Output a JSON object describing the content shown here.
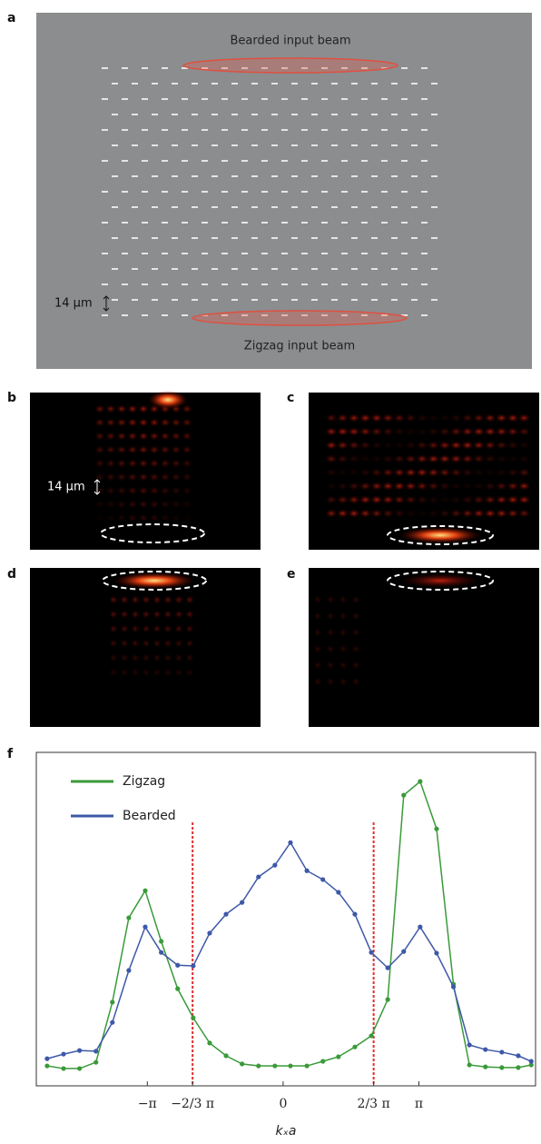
{
  "figure": {
    "panel_labels": [
      "a",
      "b",
      "c",
      "d",
      "e",
      "f"
    ],
    "bearded_label": "Bearded input beam",
    "zigzag_label": "Zigzag input beam",
    "scale_a": "14 μm",
    "scale_b": "14 μm"
  },
  "chart_data": {
    "type": "line",
    "xlabel": "kₓa",
    "legend": "upper left",
    "grid": false,
    "x": [
      -5.46,
      -5.08,
      -4.71,
      -4.33,
      -3.95,
      -3.57,
      -3.19,
      -2.82,
      -2.44,
      -2.08,
      -1.7,
      -1.32,
      -0.95,
      -0.57,
      -0.19,
      0.17,
      0.55,
      0.92,
      1.28,
      1.66,
      2.04,
      2.42,
      2.79,
      3.17,
      3.55,
      3.94,
      4.31,
      4.68,
      5.06,
      5.44,
      5.74
    ],
    "series": [
      {
        "name": "Zigzag",
        "color": "#3a9a3a",
        "values": [
          6.1,
          5.3,
          5.3,
          7.2,
          25.6,
          51.4,
          59.7,
          44.2,
          29.7,
          20.8,
          13.1,
          9.2,
          6.7,
          6.1,
          6.1,
          6.1,
          6.1,
          7.5,
          8.9,
          11.9,
          15.3,
          26.4,
          88.9,
          93.1,
          78.6,
          31.1,
          6.4,
          5.8,
          5.6,
          5.6,
          6.4
        ]
      },
      {
        "name": "Bearded",
        "color": "#3e58a8",
        "values": [
          8.3,
          9.7,
          10.8,
          10.6,
          19.4,
          35.3,
          48.6,
          40.8,
          36.9,
          36.7,
          46.7,
          52.5,
          56.1,
          63.9,
          67.5,
          74.4,
          65.8,
          63.1,
          59.2,
          52.5,
          40.8,
          36.1,
          41.1,
          48.6,
          40.6,
          30.3,
          12.5,
          11.1,
          10.3,
          9.2,
          7.5
        ]
      }
    ],
    "xlim": [
      -5.71,
      5.84
    ],
    "ylim": [
      0,
      102
    ],
    "xticks": [
      {
        "value": -3.1416,
        "label": "−π"
      },
      {
        "value": -2.0944,
        "label": "−2/3 π"
      },
      0,
      {
        "value": 2.0944,
        "label": "2/3 π"
      },
      {
        "value": 3.1416,
        "label": "π"
      }
    ],
    "vlines": [
      -2.0944,
      2.0944
    ],
    "vline_color": "#e03030"
  }
}
